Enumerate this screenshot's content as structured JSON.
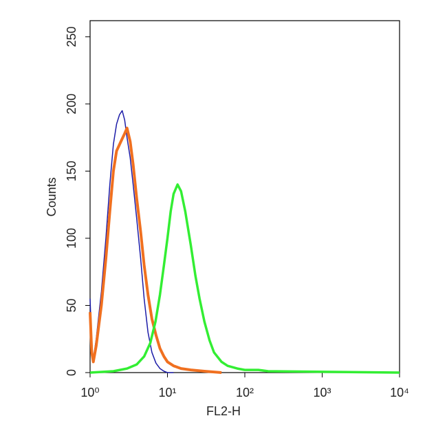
{
  "chart_data": {
    "type": "line",
    "x_label": "FL2-H",
    "y_label": "Counts",
    "log_x": true,
    "xlim": [
      1,
      10000
    ],
    "xticks": [
      {
        "value": 1,
        "label": "10⁰"
      },
      {
        "value": 10,
        "label": "10¹"
      },
      {
        "value": 100,
        "label": "10²"
      },
      {
        "value": 1000,
        "label": "10³"
      },
      {
        "value": 10000,
        "label": "10⁴"
      }
    ],
    "ylim": [
      0,
      262
    ],
    "yticks": [
      0,
      50,
      100,
      150,
      200,
      250
    ],
    "series": [
      {
        "color": "#1c1ca8",
        "width": 1.5,
        "x": [
          1,
          1.05,
          1.1,
          1.2,
          1.4,
          1.6,
          1.8,
          2.0,
          2.2,
          2.4,
          2.6,
          2.8,
          3.0,
          3.3,
          3.6,
          4.0,
          4.5,
          5,
          5.6,
          6.3,
          7.1,
          8,
          9,
          10,
          12
        ],
        "values": [
          55,
          20,
          10,
          25,
          60,
          100,
          140,
          170,
          185,
          192,
          195,
          188,
          175,
          160,
          140,
          115,
          85,
          55,
          30,
          15,
          7,
          3,
          1,
          0,
          0
        ]
      },
      {
        "color": "#f07020",
        "width": 4,
        "x": [
          1,
          1.05,
          1.1,
          1.2,
          1.4,
          1.6,
          1.8,
          2.0,
          2.2,
          2.5,
          2.8,
          3.0,
          3.3,
          3.6,
          4.0,
          4.5,
          5,
          5.6,
          6.3,
          7.1,
          8,
          9,
          10,
          12,
          15,
          20,
          30,
          50
        ],
        "values": [
          45,
          15,
          8,
          20,
          50,
          85,
          120,
          150,
          165,
          172,
          178,
          182,
          172,
          155,
          130,
          105,
          80,
          58,
          40,
          28,
          18,
          12,
          8,
          5,
          3,
          2,
          1,
          0
        ]
      },
      {
        "color": "#33ee33",
        "width": 3.5,
        "x": [
          1,
          2,
          3,
          4,
          5,
          6,
          7,
          8,
          9,
          10,
          11,
          12,
          13.5,
          15,
          17,
          20,
          23,
          26,
          30,
          35,
          40,
          50,
          60,
          80,
          100,
          150,
          200,
          10000
        ],
        "values": [
          0,
          1,
          3,
          6,
          12,
          22,
          38,
          58,
          80,
          100,
          120,
          133,
          140,
          135,
          120,
          95,
          72,
          55,
          38,
          24,
          15,
          8,
          5,
          3,
          2,
          2,
          1,
          0
        ]
      }
    ]
  }
}
